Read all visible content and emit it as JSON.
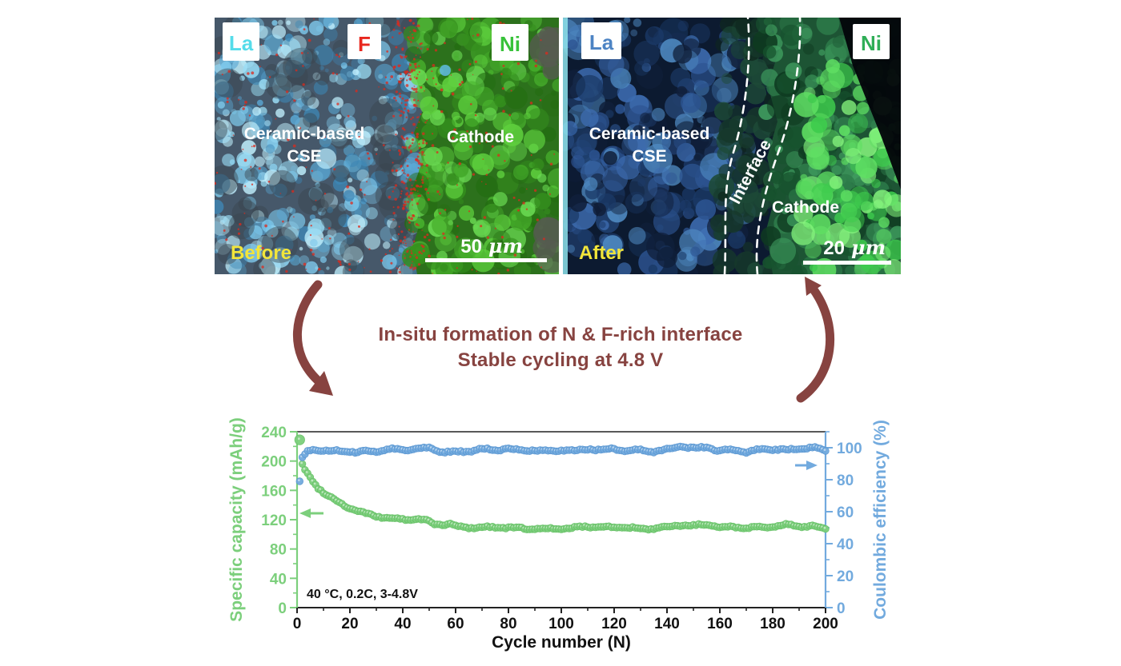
{
  "figure": {
    "caption_line1": "In-situ formation of N & F-rich interface",
    "caption_line2": "Stable cycling at 4.8 V",
    "accent_color": "#874340"
  },
  "panels": {
    "before": {
      "element_labels": [
        {
          "symbol": "La",
          "color": "#55dcea"
        },
        {
          "symbol": "F",
          "color": "#e8271e"
        },
        {
          "symbol": "Ni",
          "color": "#38c23a"
        }
      ],
      "region_line1": "Ceramic-based",
      "region_line2": "CSE",
      "cathode_label": "Cathode",
      "stage_label": "Before",
      "stage_color": "#f2e53a",
      "scale_value": "50",
      "scale_unit": "μm"
    },
    "after": {
      "element_labels": [
        {
          "symbol": "La",
          "color": "#4d84c4"
        },
        {
          "symbol": "Ni",
          "color": "#2fae57"
        }
      ],
      "region_line1": "Ceramic-based",
      "region_line2": "CSE",
      "interface_label": "Interface",
      "cathode_label": "Cathode",
      "stage_label": "After",
      "stage_color": "#f2e53a",
      "scale_value": "20",
      "scale_unit": "μm"
    }
  },
  "chart_data": {
    "type": "scatter",
    "title": "",
    "xlabel": "Cycle number (N)",
    "xlim": [
      0,
      200
    ],
    "x_ticks": [
      0,
      20,
      40,
      60,
      80,
      100,
      120,
      140,
      160,
      180,
      200
    ],
    "grid": false,
    "annotation": "40 °C, 0.2C, 3-4.8V",
    "left_axis": {
      "label": "Specific capacity (mAh/g)",
      "color": "#7ccf7c",
      "lim": [
        0,
        240
      ],
      "ticks": [
        0,
        40,
        80,
        120,
        160,
        200,
        240
      ]
    },
    "right_axis": {
      "label": "Coulombic efficiency (%)",
      "color": "#72aade",
      "lim": [
        0,
        110
      ],
      "ticks": [
        0,
        20,
        40,
        60,
        80,
        100
      ]
    },
    "series": [
      {
        "name": "Specific capacity",
        "axis": "left",
        "color": "#7ccf7c",
        "marker_edge": "#66c066",
        "points": [
          [
            1,
            229
          ],
          [
            2,
            196
          ],
          [
            3,
            188
          ],
          [
            4,
            182
          ],
          [
            5,
            176
          ],
          [
            6,
            171
          ],
          [
            7,
            167
          ],
          [
            8,
            163
          ],
          [
            9,
            160
          ],
          [
            10,
            157
          ],
          [
            12,
            152
          ],
          [
            14,
            148
          ],
          [
            16,
            144
          ],
          [
            18,
            140
          ],
          [
            20,
            137
          ],
          [
            23,
            133
          ],
          [
            26,
            129
          ],
          [
            30,
            125
          ],
          [
            34,
            122
          ],
          [
            38,
            120
          ],
          [
            42,
            119
          ],
          [
            46,
            120
          ],
          [
            50,
            118
          ],
          [
            52,
            115
          ],
          [
            55,
            114
          ],
          [
            58,
            115
          ],
          [
            60,
            112
          ],
          [
            65,
            110
          ],
          [
            70,
            109
          ],
          [
            75,
            109
          ],
          [
            80,
            108
          ],
          [
            85,
            108
          ],
          [
            90,
            108
          ],
          [
            95,
            109
          ],
          [
            100,
            108
          ],
          [
            105,
            109
          ],
          [
            110,
            110
          ],
          [
            115,
            109
          ],
          [
            120,
            109
          ],
          [
            125,
            110
          ],
          [
            130,
            108
          ],
          [
            135,
            109
          ],
          [
            140,
            110
          ],
          [
            145,
            112
          ],
          [
            150,
            111
          ],
          [
            155,
            112
          ],
          [
            160,
            110
          ],
          [
            165,
            111
          ],
          [
            170,
            110
          ],
          [
            175,
            111
          ],
          [
            180,
            110
          ],
          [
            185,
            112
          ],
          [
            190,
            110
          ],
          [
            195,
            111
          ],
          [
            200,
            108
          ]
        ]
      },
      {
        "name": "Coulombic efficiency",
        "axis": "right",
        "color": "#72aade",
        "marker_edge": "#5b97d2",
        "points": [
          [
            1,
            79
          ],
          [
            2,
            94
          ],
          [
            3,
            96
          ],
          [
            4,
            97
          ],
          [
            6,
            98
          ],
          [
            10,
            98
          ],
          [
            15,
            98
          ],
          [
            20,
            98
          ],
          [
            25,
            98
          ],
          [
            30,
            98
          ],
          [
            35,
            99
          ],
          [
            40,
            98
          ],
          [
            45,
            99
          ],
          [
            50,
            100
          ],
          [
            55,
            98
          ],
          [
            60,
            98
          ],
          [
            65,
            98
          ],
          [
            70,
            99
          ],
          [
            75,
            98
          ],
          [
            80,
            99
          ],
          [
            85,
            98
          ],
          [
            90,
            99
          ],
          [
            95,
            98
          ],
          [
            100,
            99
          ],
          [
            105,
            98
          ],
          [
            110,
            99
          ],
          [
            115,
            98
          ],
          [
            120,
            99
          ],
          [
            125,
            98
          ],
          [
            130,
            99
          ],
          [
            135,
            98
          ],
          [
            140,
            99
          ],
          [
            145,
            101
          ],
          [
            150,
            99
          ],
          [
            155,
            100
          ],
          [
            160,
            98
          ],
          [
            165,
            99
          ],
          [
            170,
            98
          ],
          [
            175,
            99
          ],
          [
            180,
            99
          ],
          [
            185,
            98
          ],
          [
            190,
            99
          ],
          [
            195,
            100
          ],
          [
            200,
            98
          ]
        ]
      }
    ]
  }
}
